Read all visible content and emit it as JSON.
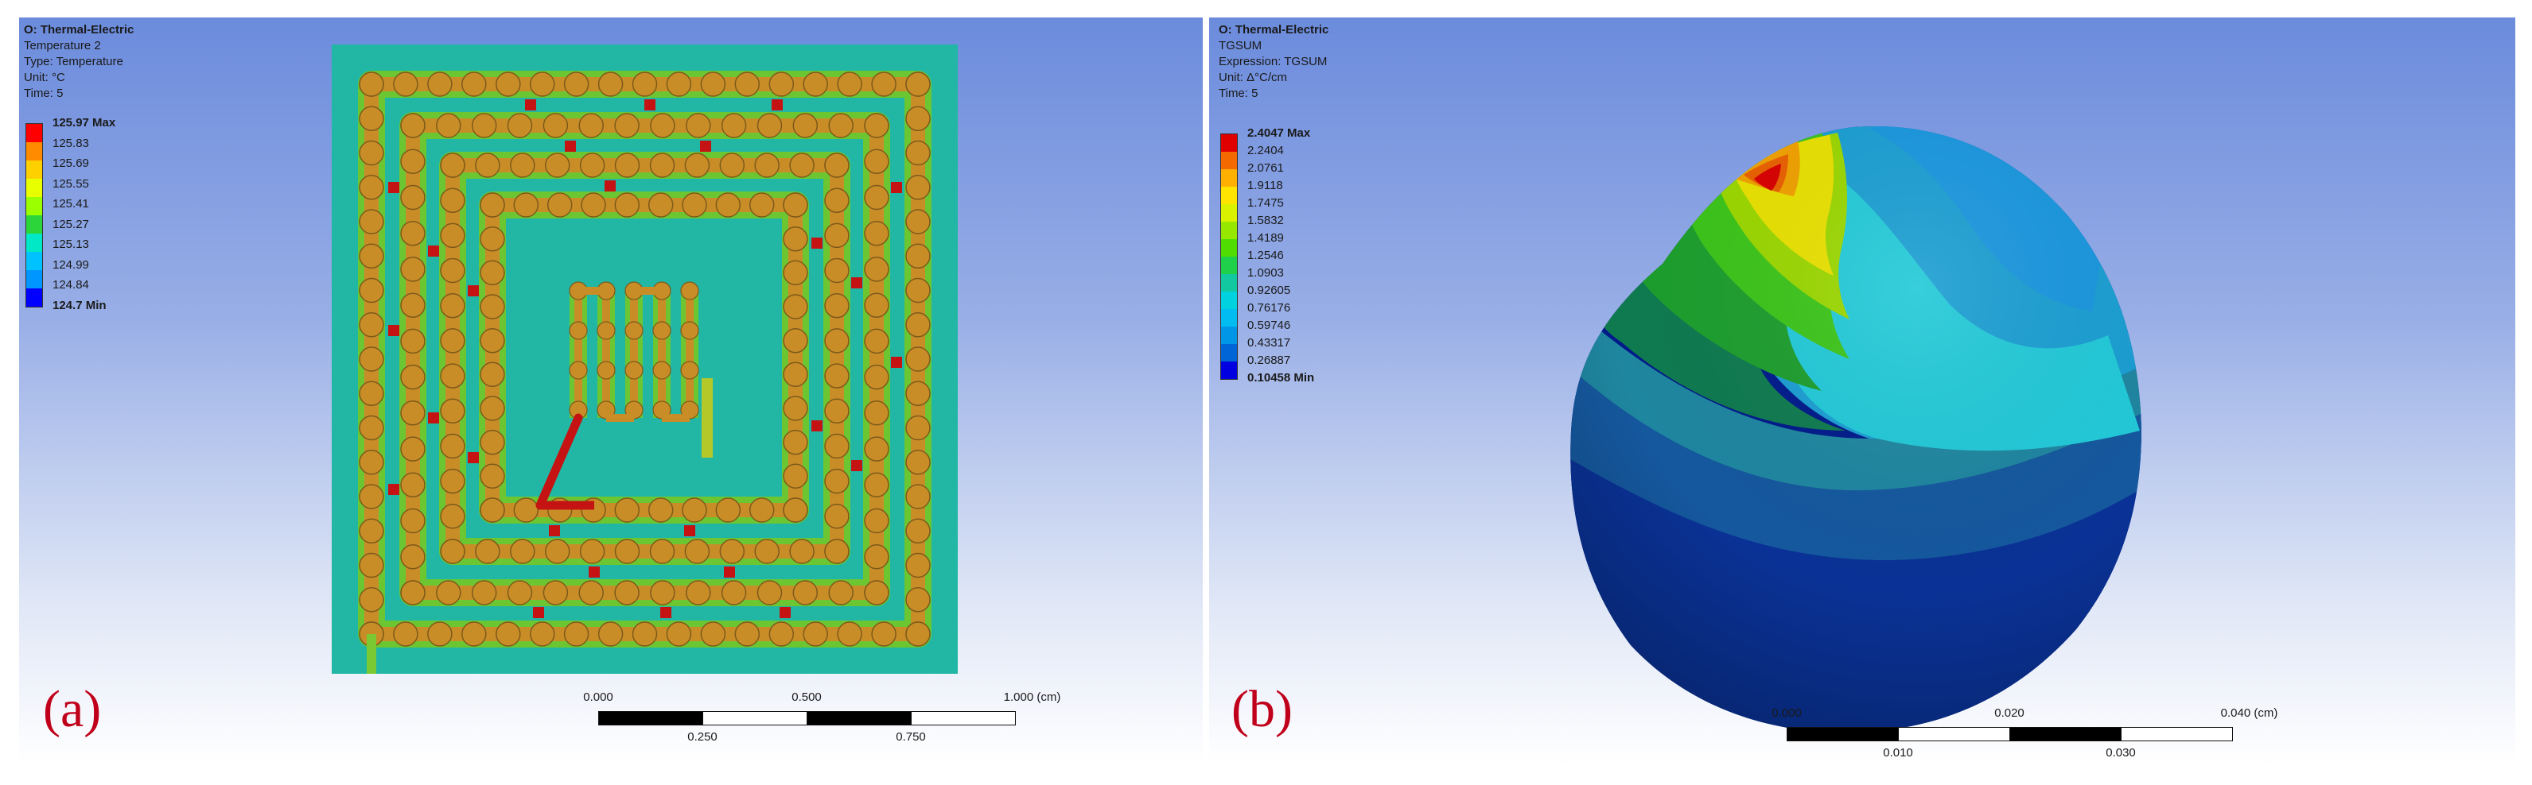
{
  "panel_a": {
    "label": "(a)",
    "info": {
      "title": "O: Thermal-Electric",
      "lines": [
        "Temperature 2",
        "Type: Temperature",
        "Unit: °C",
        "Time: 5"
      ]
    },
    "legend": {
      "max": "125.97 Max",
      "values": [
        "125.83",
        "125.69",
        "125.55",
        "125.41",
        "125.27",
        "125.13",
        "124.99",
        "124.84"
      ],
      "min": "124.7 Min",
      "colors": [
        "#ff0000",
        "#ff8c00",
        "#ffd000",
        "#e8ff00",
        "#9cff00",
        "#2cd63a",
        "#00e8c6",
        "#00c2ff",
        "#0096ff",
        "#0000ff"
      ]
    },
    "scale_bar": {
      "top_ticks": [
        "0.000",
        "0.500",
        "1.000 (cm)"
      ],
      "bottom_ticks": [
        "0.250",
        "0.750"
      ]
    },
    "colors": {
      "substrate": "#22b7a4",
      "halo": "#6cc632",
      "trace": "#c98d28",
      "hot": "#c51313"
    }
  },
  "panel_b": {
    "label": "(b)",
    "info": {
      "title": "O: Thermal-Electric",
      "lines": [
        "TGSUM",
        "Expression: TGSUM",
        "Unit: Δ°C/cm",
        "Time: 5"
      ]
    },
    "legend": {
      "max": "2.4047 Max",
      "values": [
        "2.2404",
        "2.0761",
        "1.9118",
        "1.7475",
        "1.5832",
        "1.4189",
        "1.2546",
        "1.0903",
        "0.92605",
        "0.76176",
        "0.59746",
        "0.43317",
        "0.26887"
      ],
      "min": "0.10458 Min",
      "colors": [
        "#e00000",
        "#f56a00",
        "#ffb000",
        "#ffe400",
        "#d9f200",
        "#97e800",
        "#50dc00",
        "#1ed04a",
        "#12c8a0",
        "#00d2e0",
        "#00bcf0",
        "#0096e8",
        "#0066d8",
        "#0000e0"
      ]
    },
    "scale_bar": {
      "top_ticks": [
        "0.000",
        "0.020",
        "0.040 (cm)"
      ],
      "bottom_ticks": [
        "0.010",
        "0.030"
      ]
    }
  }
}
